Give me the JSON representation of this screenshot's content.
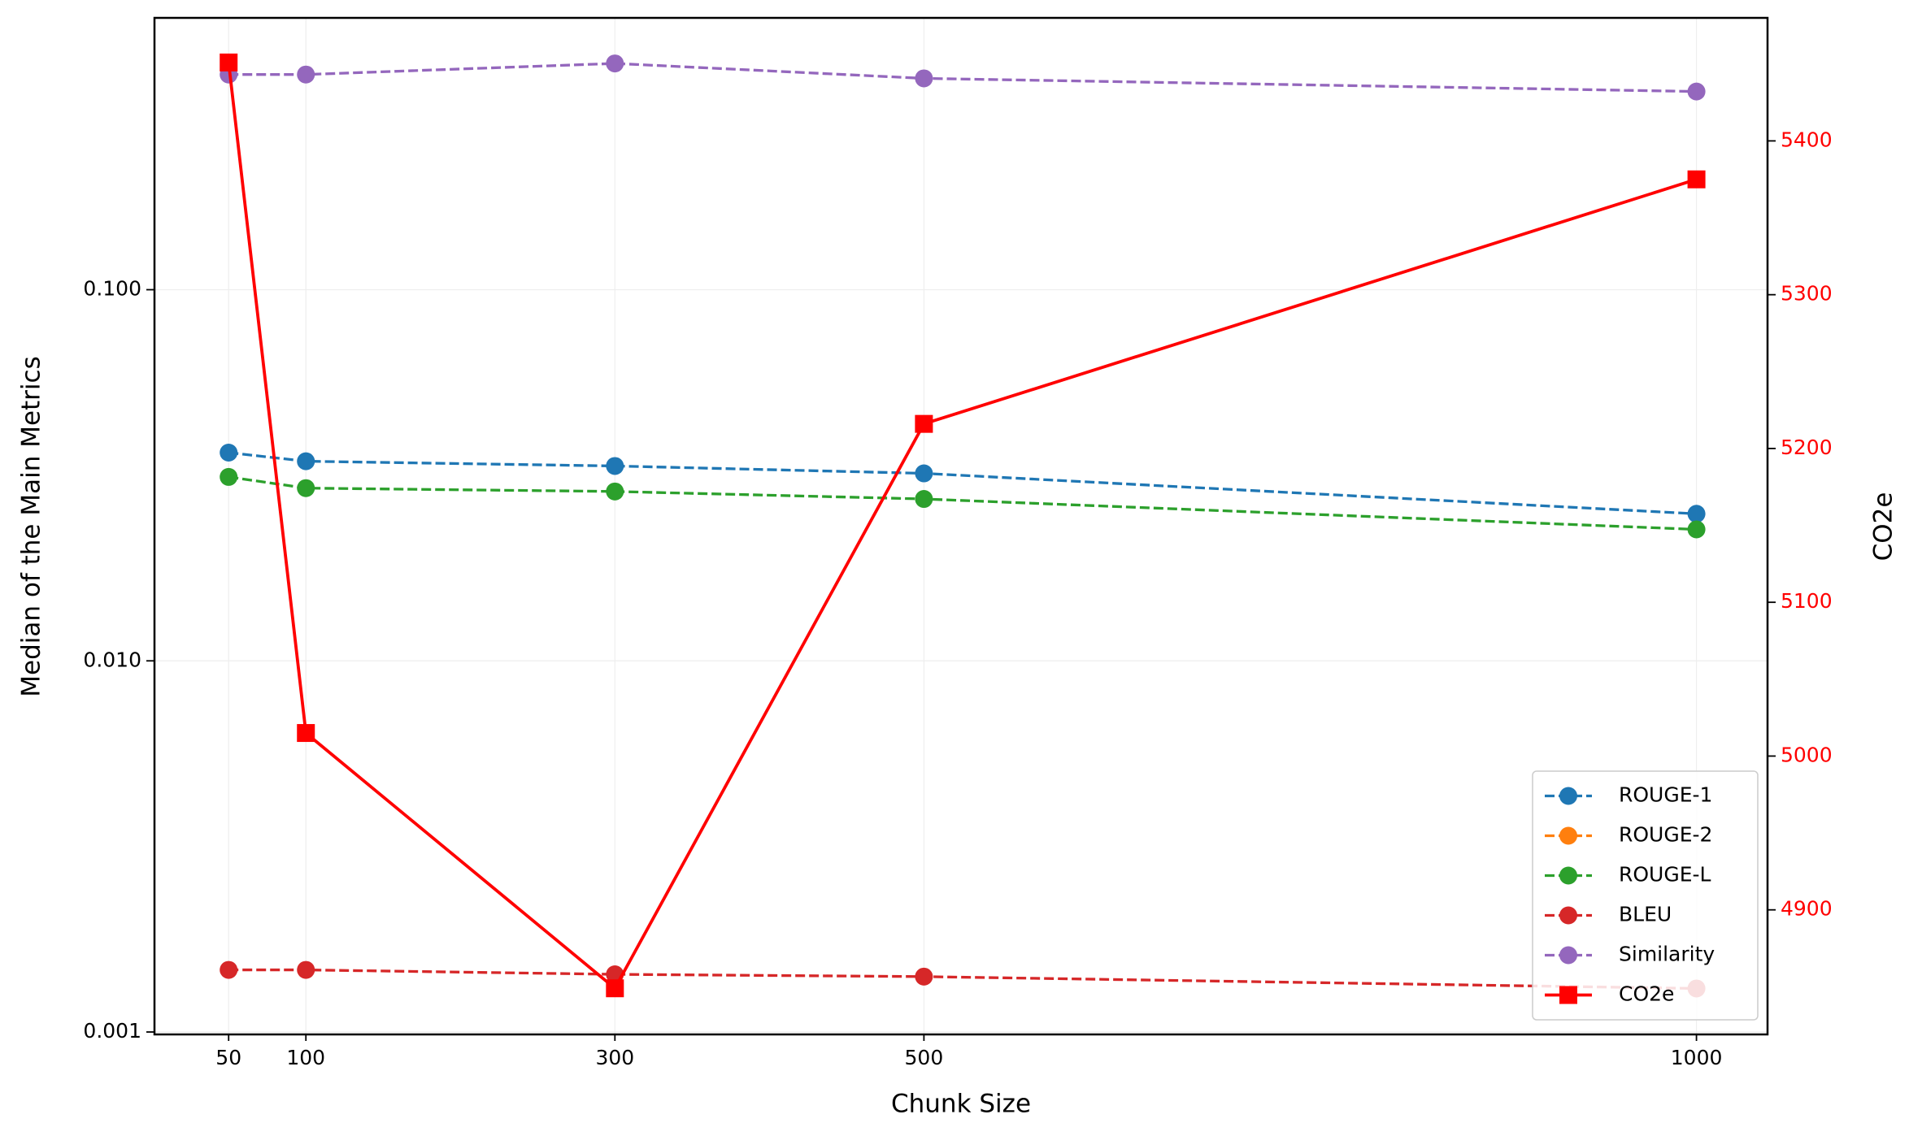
{
  "chart_data": {
    "type": "line",
    "xlabel": "Chunk Size",
    "ylabel": "Median of the Main Metrics",
    "y2label": "CO2e",
    "x": [
      50,
      100,
      300,
      500,
      1000
    ],
    "xlim": [
      2,
      1046
    ],
    "xticks": [
      50,
      100,
      300,
      500,
      1000
    ],
    "ylim": [
      0.000985,
      0.54
    ],
    "yscale": "log",
    "yticks": [
      0.001,
      {
        "value": 0.01,
        "label": "0.010"
      },
      {
        "value": 0.1,
        "label": "0.100"
      }
    ],
    "y2lim": [
      4819,
      5480
    ],
    "y2ticks": [
      4900,
      5000,
      5100,
      5200,
      5300,
      5400
    ],
    "y2color": "#ff0000",
    "grid": true,
    "legend": "lower right",
    "series": [
      {
        "name": "ROUGE-1",
        "color": "#1f77b4",
        "values": [
          0.0364,
          0.0345,
          0.0335,
          0.032,
          0.0249
        ]
      },
      {
        "name": "ROUGE-2",
        "color": "#ff7f0e",
        "values": [
          null,
          null,
          null,
          null,
          null
        ]
      },
      {
        "name": "ROUGE-L",
        "color": "#2ca02c",
        "values": [
          0.0313,
          0.0292,
          0.0286,
          0.0273,
          0.0226
        ]
      },
      {
        "name": "BLEU",
        "color": "#d62728",
        "values": [
          0.00147,
          0.00147,
          0.00143,
          0.00141,
          0.00131
        ]
      },
      {
        "name": "Similarity",
        "color": "#9467bd",
        "values": [
          0.38,
          0.38,
          0.407,
          0.371,
          0.342
        ]
      },
      {
        "name": "CO2e",
        "color": "#ff0000",
        "axis": "y2",
        "values": [
          5451,
          5015,
          4849,
          5216,
          5375
        ]
      }
    ]
  }
}
